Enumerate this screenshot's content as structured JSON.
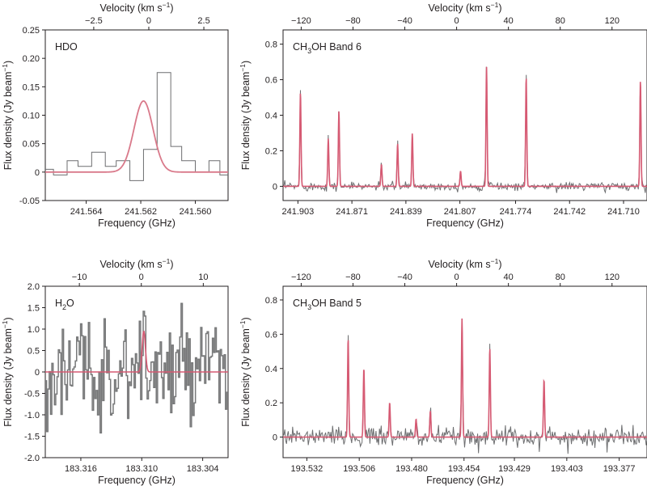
{
  "chart_data": [
    {
      "id": "hdo",
      "type": "line",
      "title": "HDO",
      "xlabel": "Frequency (GHz)",
      "ylabel": "Flux density (Jy beam⁻¹)",
      "top_label": "Velocity (km s⁻¹)",
      "xlim": [
        241.5655,
        241.5588
      ],
      "ylim": [
        -0.05,
        0.25
      ],
      "x_ticks": [
        "241.564",
        "241.562",
        "241.560"
      ],
      "y_ticks": [
        "-0.05",
        "0",
        "0.05",
        "0.10",
        "0.15",
        "0.20",
        "0.25"
      ],
      "top_ticks": [
        "-2.5",
        "0",
        "2.5"
      ],
      "top_lim": [
        -4.7,
        3.6
      ],
      "series": [
        {
          "style": "observed",
          "x": [
            241.5655,
            241.5652,
            241.5647,
            241.5643,
            241.5638,
            241.5633,
            241.5629,
            241.5624,
            241.5619,
            241.5614,
            241.5609,
            241.5605,
            241.56,
            241.5595,
            241.5591,
            241.5588
          ],
          "y": [
            0.005,
            -0.005,
            0.02,
            0.01,
            0.035,
            0.01,
            0.02,
            -0.015,
            0.04,
            0.175,
            0.045,
            0.02,
            0.0,
            0.02,
            -0.005,
            -0.005
          ]
        },
        {
          "style": "fit",
          "x0": 241.5619,
          "sigma": 0.00035,
          "amp": 0.125
        }
      ]
    },
    {
      "id": "ch3oh_b6",
      "type": "line",
      "title": "CH3OH Band 6",
      "xlabel": "Frequency (GHz)",
      "ylabel": "Flux density (Jy beam⁻¹)",
      "top_label": "Velocity (km s⁻¹)",
      "xlim": [
        241.9118,
        241.6961
      ],
      "ylim": [
        -0.08,
        0.88
      ],
      "x_ticks": [
        "241.903",
        "241.871",
        "241.839",
        "241.807",
        "241.774",
        "241.742",
        "241.710"
      ],
      "y_ticks": [
        "0",
        "0.2",
        "0.4",
        "0.6",
        "0.8"
      ],
      "top_ticks": [
        "-120",
        "-80",
        "-40",
        "0",
        "40",
        "80",
        "120"
      ],
      "top_lim": [
        -134,
        147
      ],
      "lines": [
        {
          "x": 241.9015,
          "y": 0.55
        },
        {
          "x": 241.885,
          "y": 0.28
        },
        {
          "x": 241.8787,
          "y": 0.44
        },
        {
          "x": 241.8535,
          "y": 0.13
        },
        {
          "x": 241.8439,
          "y": 0.25
        },
        {
          "x": 241.8352,
          "y": 0.31
        },
        {
          "x": 241.8066,
          "y": 0.09
        },
        {
          "x": 241.7912,
          "y": 0.7
        },
        {
          "x": 241.7677,
          "y": 0.64
        },
        {
          "x": 241.7,
          "y": 0.62
        }
      ]
    },
    {
      "id": "h2o",
      "type": "line",
      "title": "H2O",
      "xlabel": "Frequency (GHz)",
      "ylabel": "Flux density (Jy beam⁻¹)",
      "top_label": "Velocity (km s⁻¹)",
      "xlim": [
        183.3195,
        183.3015
      ],
      "ylim": [
        -2.0,
        2.0
      ],
      "x_ticks": [
        "183.316",
        "183.310",
        "183.304"
      ],
      "y_ticks": [
        "-2.0",
        "-1.5",
        "-1.0",
        "-0.5",
        "0",
        "0.5",
        "1.0",
        "1.5",
        "2.0"
      ],
      "top_ticks": [
        "-10",
        "0",
        "10"
      ],
      "top_lim": [
        -15.5,
        14
      ],
      "fit": {
        "x0": 183.3098,
        "sigma": 0.00016,
        "amp": 0.95
      }
    },
    {
      "id": "ch3oh_b5",
      "type": "line",
      "title": "CH3OH Band 5",
      "xlabel": "Frequency (GHz)",
      "ylabel": "Flux density (Jy beam⁻¹)",
      "top_label": "Velocity (km s⁻¹)",
      "xlim": [
        193.5438,
        193.3632
      ],
      "ylim": [
        -0.12,
        0.88
      ],
      "x_ticks": [
        "193.532",
        "193.506",
        "193.480",
        "193.454",
        "193.429",
        "193.403",
        "193.377"
      ],
      "y_ticks": [
        "0",
        "0.2",
        "0.4",
        "0.6",
        "0.8"
      ],
      "top_ticks": [
        "-120",
        "-80",
        "-40",
        "0",
        "40",
        "80",
        "120"
      ],
      "top_lim": [
        -134,
        147
      ],
      "lines": [
        {
          "x": 193.5115,
          "y": 0.6
        },
        {
          "x": 193.5037,
          "y": 0.42
        },
        {
          "x": 193.4909,
          "y": 0.21
        },
        {
          "x": 193.4778,
          "y": 0.11
        },
        {
          "x": 193.4707,
          "y": 0.16
        },
        {
          "x": 193.455,
          "y": 0.72
        },
        {
          "x": 193.4412,
          "y": 0.54
        },
        {
          "x": 193.4143,
          "y": 0.35
        }
      ]
    }
  ]
}
